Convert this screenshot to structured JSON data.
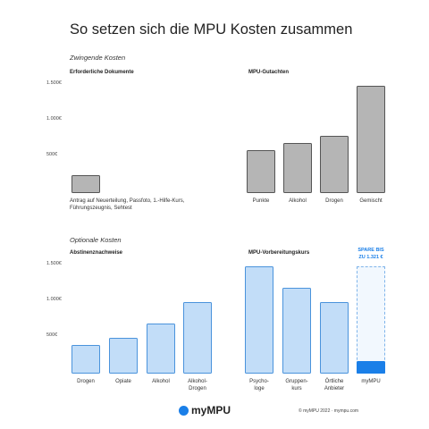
{
  "title": "So setzen sich die MPU Kosten zusammen",
  "sections": [
    "Zwingende Kosten",
    "Optionale Kosten"
  ],
  "chart_data": [
    {
      "type": "bar",
      "title": "Erforderliche Dokumente",
      "categories": [
        "Antrag auf Neuerteilung, Passfoto, 1.-Hilfe-Kurs, Führungszeugnis, Sehtest"
      ],
      "values": [
        250
      ],
      "color": "#b5b5b5",
      "ylim": [
        0,
        1500
      ],
      "yticks": [
        {
          "value": 500,
          "label": "500€"
        },
        {
          "value": 1000,
          "label": "1.000€"
        },
        {
          "value": 1500,
          "label": "1.500€"
        }
      ]
    },
    {
      "type": "bar",
      "title": "MPU-Gutachten",
      "categories": [
        "Punkte",
        "Alkohol",
        "Drogen",
        "Gemischt"
      ],
      "values": [
        600,
        700,
        800,
        1500
      ],
      "color": "#b5b5b5",
      "ylim": [
        0,
        1500
      ]
    },
    {
      "type": "bar",
      "title": "Abstinenznachweise",
      "categories": [
        "Drogen",
        "Opiate",
        "Alkohol",
        "Alkohol-\nDrogen"
      ],
      "values": [
        400,
        500,
        700,
        1000
      ],
      "color": "#c2ddf8",
      "ylim": [
        0,
        1500
      ],
      "yticks": [
        {
          "value": 500,
          "label": "500€"
        },
        {
          "value": 1000,
          "label": "1.000€"
        },
        {
          "value": 1500,
          "label": "1.500€"
        }
      ]
    },
    {
      "type": "bar",
      "title": "MPU-Vorbereitungskurs",
      "categories": [
        "Psycho-\nloge",
        "Gruppen-\nkurs",
        "Örtliche\nAnbieter",
        "myMPU"
      ],
      "values": [
        1500,
        1200,
        1000,
        179
      ],
      "color": "#c2ddf8",
      "colors": [
        "#c2ddf8",
        "#c2ddf8",
        "#c2ddf8",
        "#1a7fe8"
      ],
      "annotation": [
        "SPARE BIS",
        "ZU 1.321 €"
      ],
      "ylim": [
        0,
        1500
      ]
    }
  ],
  "footer": {
    "brand": "myMPU",
    "copyright": "© myMPU 2022 · mympu.com"
  }
}
